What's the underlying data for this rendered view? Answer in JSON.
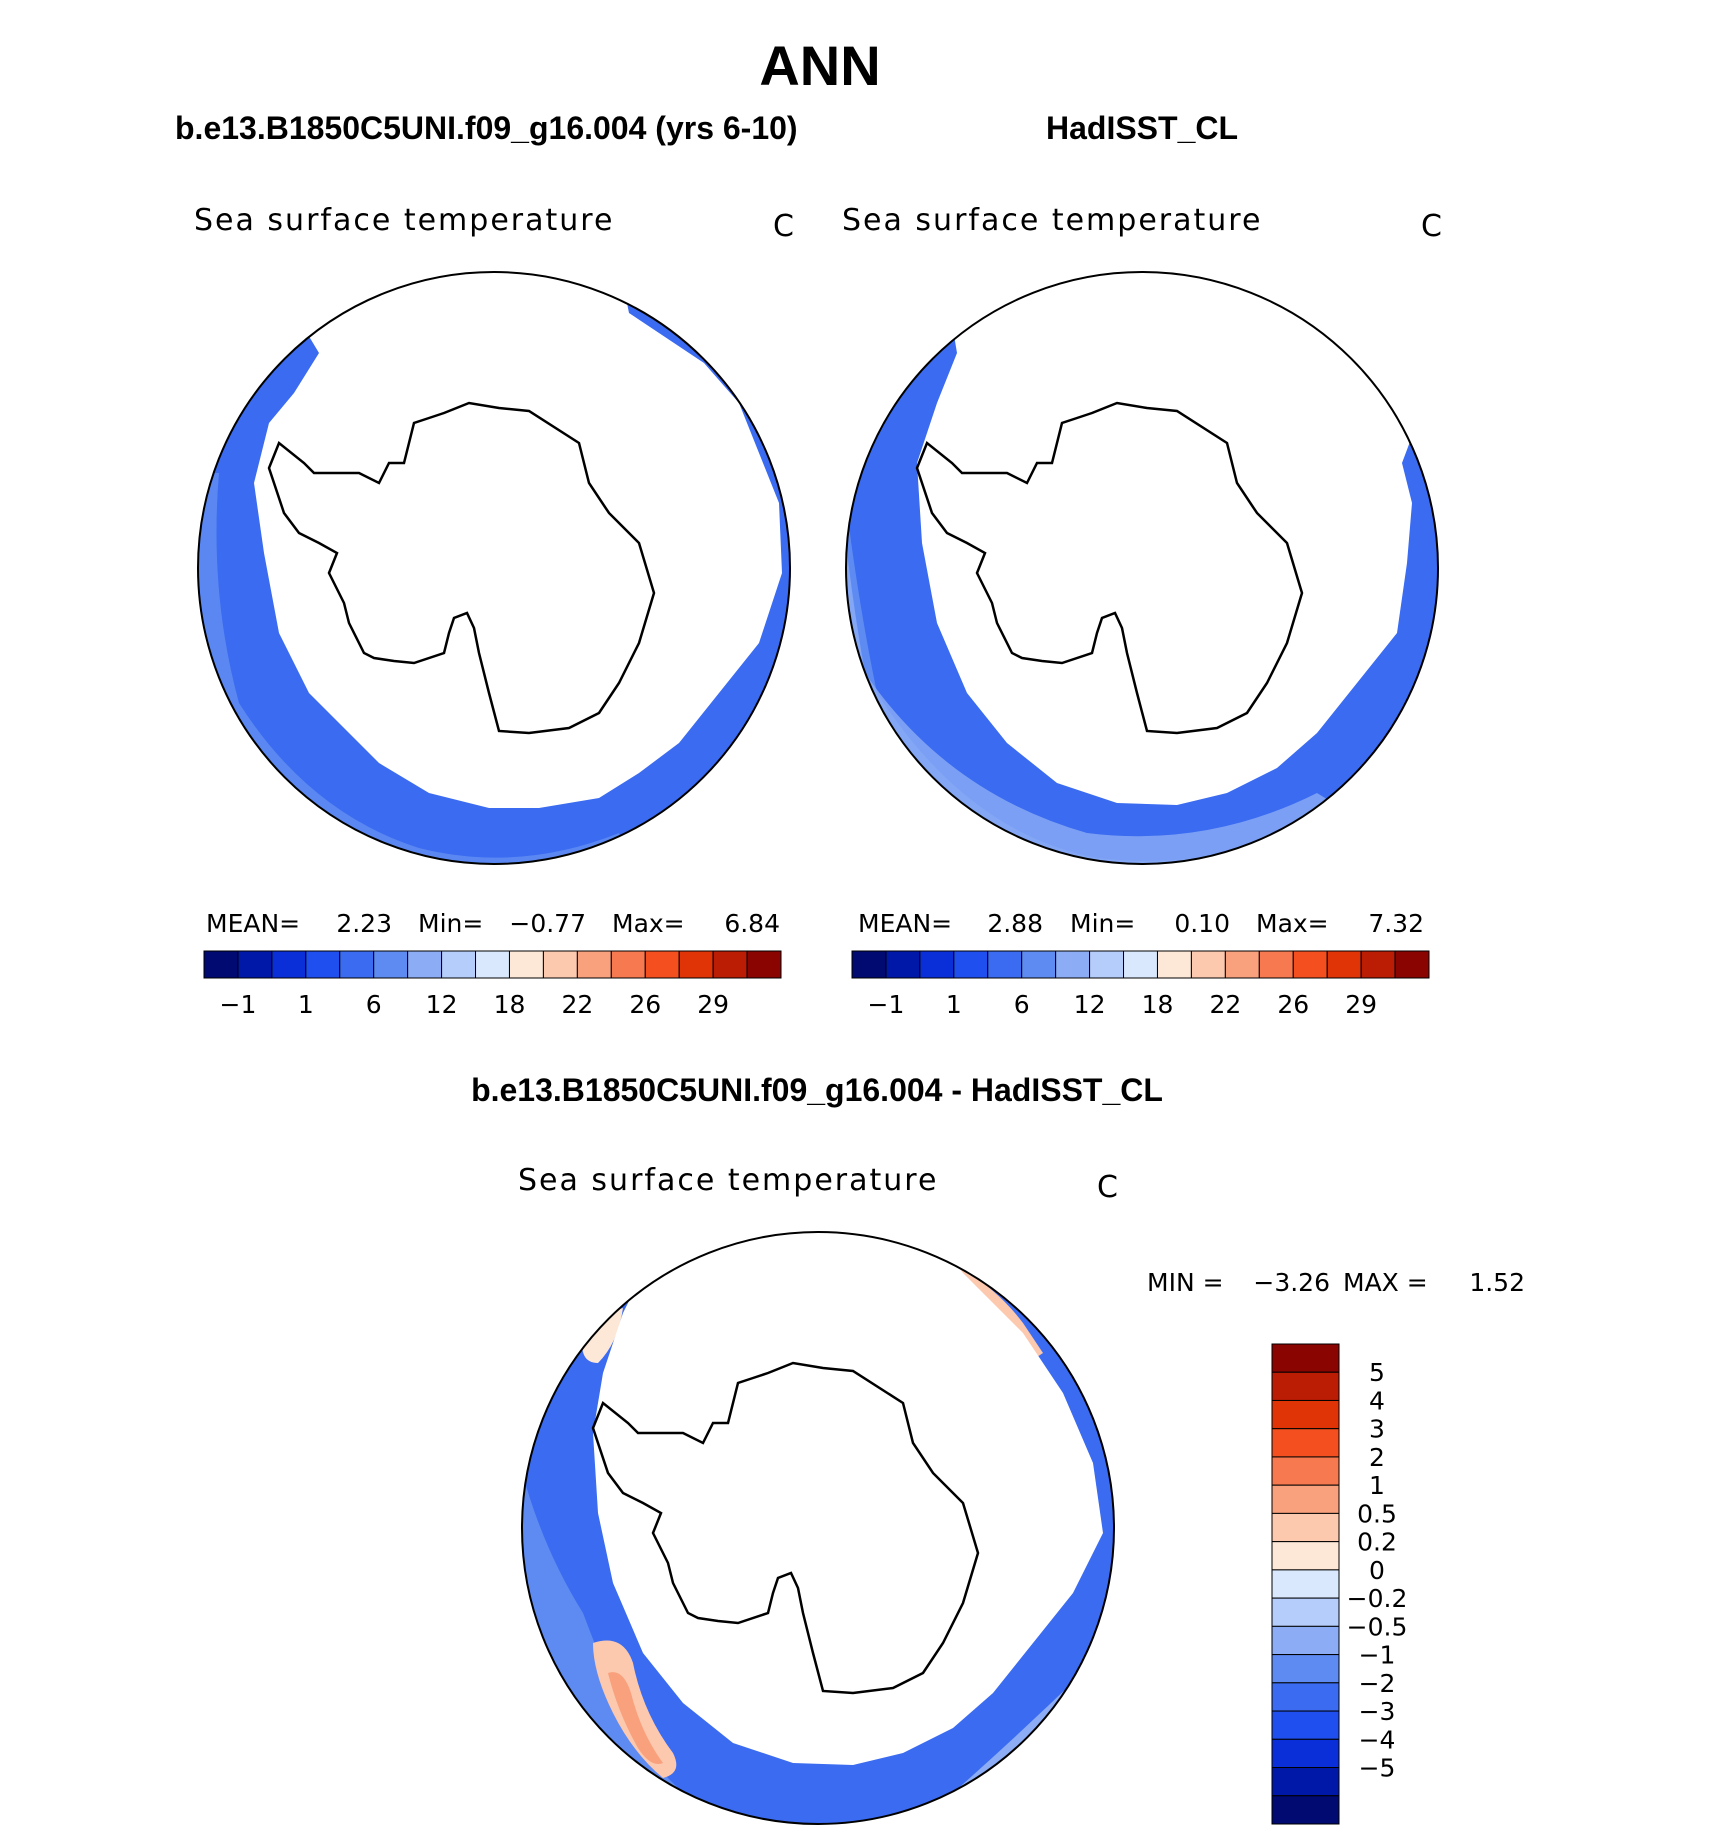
{
  "figure": {
    "title": "ANN",
    "panel_titles": {
      "model": "b.e13.B1850C5UNI.f09_g16.004 (yrs 6-10)",
      "obs": "HadISST_CL",
      "diff": "b.e13.B1850C5UNI.f09_g16.004 - HadISST_CL"
    }
  },
  "colors": {
    "land": "#ffffff",
    "coast": "#000000",
    "abs_palette": [
      "#000a70",
      "#0018a8",
      "#0a2fd8",
      "#1f4fee",
      "#3a6bf0",
      "#5e8bf2",
      "#8cacf5",
      "#b5cdfa",
      "#d9e8fd",
      "#fde8d8",
      "#fcc8ae",
      "#f9a07c",
      "#f6794f",
      "#f4501f",
      "#e03306",
      "#ba1c04",
      "#8a0502"
    ],
    "diff_palette": [
      "#000a70",
      "#0018a8",
      "#0a2fd8",
      "#1f4fee",
      "#3a6bf0",
      "#5e8bf2",
      "#8cacf5",
      "#b5cdfa",
      "#d9e8fd",
      "#fde8d8",
      "#fcc8ae",
      "#f9a07c",
      "#f6794f",
      "#f4501f",
      "#e03306",
      "#ba1c04",
      "#8a0502"
    ]
  },
  "chart_data": [
    {
      "type": "heatmap",
      "projection": "south-polar-stereographic",
      "title": "Sea surface temperature",
      "units": "C",
      "stats": {
        "mean_label": "MEAN=",
        "mean": "2.23",
        "min_label": "Min=",
        "min": "−0.77",
        "max_label": "Max=",
        "max": "6.84"
      },
      "colorbar": {
        "orientation": "horizontal",
        "tick_labels": [
          "−1",
          "1",
          "6",
          "12",
          "18",
          "22",
          "26",
          "29"
        ]
      }
    },
    {
      "type": "heatmap",
      "projection": "south-polar-stereographic",
      "title": "Sea surface temperature",
      "units": "C",
      "stats": {
        "mean_label": "MEAN=",
        "mean": "2.88",
        "min_label": "Min=",
        "min": "0.10",
        "max_label": "Max=",
        "max": "7.32"
      },
      "colorbar": {
        "orientation": "horizontal",
        "tick_labels": [
          "−1",
          "1",
          "6",
          "12",
          "18",
          "22",
          "26",
          "29"
        ]
      }
    },
    {
      "type": "heatmap",
      "projection": "south-polar-stereographic",
      "title": "Sea surface temperature",
      "units": "C",
      "stats": {
        "min_label": "MIN =",
        "min": "−3.26",
        "max_label": "MAX =",
        "max": "1.52"
      },
      "colorbar": {
        "orientation": "vertical",
        "tick_labels": [
          "5",
          "4",
          "3",
          "2",
          "1",
          "0.5",
          "0.2",
          "0",
          "−0.2",
          "−0.5",
          "−1",
          "−2",
          "−3",
          "−4",
          "−5"
        ]
      }
    }
  ]
}
